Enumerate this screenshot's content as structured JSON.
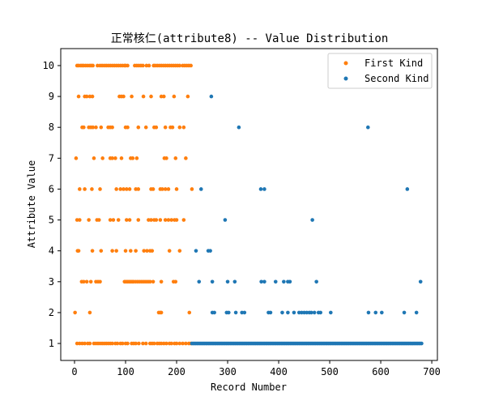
{
  "chart_data": {
    "type": "scatter",
    "title": "正常核仁(attribute8) -- Value Distribution",
    "xlabel": "Record Number",
    "ylabel": "Attribute Value",
    "xlim": [
      -27,
      711
    ],
    "ylim": [
      0.45,
      10.55
    ],
    "xticks": [
      0,
      100,
      200,
      300,
      400,
      500,
      600,
      700
    ],
    "yticks": [
      1,
      2,
      3,
      4,
      5,
      6,
      7,
      8,
      9,
      10
    ],
    "grid": false,
    "legend_position": "top-right",
    "series": [
      {
        "name": "First Kind",
        "color": "#ff7f0e",
        "points": [
          [
            5,
            10
          ],
          [
            8,
            10
          ],
          [
            12,
            10
          ],
          [
            15,
            10
          ],
          [
            18,
            10
          ],
          [
            22,
            10
          ],
          [
            26,
            10
          ],
          [
            30,
            10
          ],
          [
            33,
            10
          ],
          [
            36,
            10
          ],
          [
            45,
            10
          ],
          [
            50,
            10
          ],
          [
            54,
            10
          ],
          [
            58,
            10
          ],
          [
            62,
            10
          ],
          [
            66,
            10
          ],
          [
            70,
            10
          ],
          [
            74,
            10
          ],
          [
            78,
            10
          ],
          [
            82,
            10
          ],
          [
            86,
            10
          ],
          [
            90,
            10
          ],
          [
            94,
            10
          ],
          [
            98,
            10
          ],
          [
            100,
            10
          ],
          [
            104,
            10
          ],
          [
            118,
            10
          ],
          [
            122,
            10
          ],
          [
            126,
            10
          ],
          [
            130,
            10
          ],
          [
            134,
            10
          ],
          [
            141,
            10
          ],
          [
            146,
            10
          ],
          [
            155,
            10
          ],
          [
            158,
            10
          ],
          [
            162,
            10
          ],
          [
            166,
            10
          ],
          [
            170,
            10
          ],
          [
            174,
            10
          ],
          [
            178,
            10
          ],
          [
            182,
            10
          ],
          [
            186,
            10
          ],
          [
            190,
            10
          ],
          [
            194,
            10
          ],
          [
            198,
            10
          ],
          [
            202,
            10
          ],
          [
            206,
            10
          ],
          [
            212,
            10
          ],
          [
            216,
            10
          ],
          [
            220,
            10
          ],
          [
            224,
            10
          ],
          [
            228,
            10
          ],
          [
            8,
            9
          ],
          [
            20,
            9
          ],
          [
            24,
            9
          ],
          [
            30,
            9
          ],
          [
            35,
            9
          ],
          [
            88,
            9
          ],
          [
            92,
            9
          ],
          [
            96,
            9
          ],
          [
            112,
            9
          ],
          [
            135,
            9
          ],
          [
            150,
            9
          ],
          [
            170,
            9
          ],
          [
            175,
            9
          ],
          [
            195,
            9
          ],
          [
            222,
            9
          ],
          [
            15,
            8
          ],
          [
            18,
            8
          ],
          [
            28,
            8
          ],
          [
            32,
            8
          ],
          [
            36,
            8
          ],
          [
            42,
            8
          ],
          [
            52,
            8
          ],
          [
            66,
            8
          ],
          [
            70,
            8
          ],
          [
            74,
            8
          ],
          [
            100,
            8
          ],
          [
            104,
            8
          ],
          [
            125,
            8
          ],
          [
            140,
            8
          ],
          [
            156,
            8
          ],
          [
            160,
            8
          ],
          [
            178,
            8
          ],
          [
            188,
            8
          ],
          [
            192,
            8
          ],
          [
            206,
            8
          ],
          [
            214,
            8
          ],
          [
            3,
            7
          ],
          [
            38,
            7
          ],
          [
            55,
            7
          ],
          [
            70,
            7
          ],
          [
            74,
            7
          ],
          [
            80,
            7
          ],
          [
            92,
            7
          ],
          [
            110,
            7
          ],
          [
            114,
            7
          ],
          [
            122,
            7
          ],
          [
            176,
            7
          ],
          [
            180,
            7
          ],
          [
            198,
            7
          ],
          [
            218,
            7
          ],
          [
            10,
            6
          ],
          [
            20,
            6
          ],
          [
            34,
            6
          ],
          [
            50,
            6
          ],
          [
            82,
            6
          ],
          [
            90,
            6
          ],
          [
            96,
            6
          ],
          [
            102,
            6
          ],
          [
            108,
            6
          ],
          [
            120,
            6
          ],
          [
            125,
            6
          ],
          [
            150,
            6
          ],
          [
            154,
            6
          ],
          [
            168,
            6
          ],
          [
            172,
            6
          ],
          [
            178,
            6
          ],
          [
            184,
            6
          ],
          [
            200,
            6
          ],
          [
            230,
            6
          ],
          [
            5,
            5
          ],
          [
            10,
            5
          ],
          [
            28,
            5
          ],
          [
            44,
            5
          ],
          [
            48,
            5
          ],
          [
            70,
            5
          ],
          [
            76,
            5
          ],
          [
            86,
            5
          ],
          [
            102,
            5
          ],
          [
            108,
            5
          ],
          [
            125,
            5
          ],
          [
            145,
            5
          ],
          [
            150,
            5
          ],
          [
            156,
            5
          ],
          [
            160,
            5
          ],
          [
            168,
            5
          ],
          [
            178,
            5
          ],
          [
            184,
            5
          ],
          [
            190,
            5
          ],
          [
            196,
            5
          ],
          [
            200,
            5
          ],
          [
            214,
            5
          ],
          [
            6,
            4
          ],
          [
            8,
            4
          ],
          [
            35,
            4
          ],
          [
            52,
            4
          ],
          [
            74,
            4
          ],
          [
            82,
            4
          ],
          [
            100,
            4
          ],
          [
            110,
            4
          ],
          [
            120,
            4
          ],
          [
            136,
            4
          ],
          [
            142,
            4
          ],
          [
            148,
            4
          ],
          [
            152,
            4
          ],
          [
            186,
            4
          ],
          [
            206,
            4
          ],
          [
            14,
            3
          ],
          [
            18,
            3
          ],
          [
            24,
            3
          ],
          [
            32,
            3
          ],
          [
            42,
            3
          ],
          [
            46,
            3
          ],
          [
            50,
            3
          ],
          [
            98,
            3
          ],
          [
            101,
            3
          ],
          [
            104,
            3
          ],
          [
            107,
            3
          ],
          [
            110,
            3
          ],
          [
            113,
            3
          ],
          [
            116,
            3
          ],
          [
            120,
            3
          ],
          [
            124,
            3
          ],
          [
            128,
            3
          ],
          [
            132,
            3
          ],
          [
            136,
            3
          ],
          [
            140,
            3
          ],
          [
            144,
            3
          ],
          [
            148,
            3
          ],
          [
            154,
            3
          ],
          [
            170,
            3
          ],
          [
            194,
            3
          ],
          [
            198,
            3
          ],
          [
            1,
            2
          ],
          [
            30,
            2
          ],
          [
            165,
            2
          ],
          [
            168,
            2
          ],
          [
            170,
            2
          ],
          [
            225,
            2
          ],
          [
            5,
            1
          ],
          [
            10,
            1
          ],
          [
            15,
            1
          ],
          [
            20,
            1
          ],
          [
            26,
            1
          ],
          [
            30,
            1
          ],
          [
            38,
            1
          ],
          [
            42,
            1
          ],
          [
            46,
            1
          ],
          [
            50,
            1
          ],
          [
            54,
            1
          ],
          [
            58,
            1
          ],
          [
            62,
            1
          ],
          [
            66,
            1
          ],
          [
            70,
            1
          ],
          [
            74,
            1
          ],
          [
            80,
            1
          ],
          [
            84,
            1
          ],
          [
            90,
            1
          ],
          [
            94,
            1
          ],
          [
            100,
            1
          ],
          [
            104,
            1
          ],
          [
            112,
            1
          ],
          [
            116,
            1
          ],
          [
            120,
            1
          ],
          [
            126,
            1
          ],
          [
            134,
            1
          ],
          [
            140,
            1
          ],
          [
            148,
            1
          ],
          [
            152,
            1
          ],
          [
            156,
            1
          ],
          [
            162,
            1
          ],
          [
            166,
            1
          ],
          [
            170,
            1
          ],
          [
            175,
            1
          ],
          [
            180,
            1
          ],
          [
            186,
            1
          ],
          [
            190,
            1
          ],
          [
            196,
            1
          ],
          [
            200,
            1
          ],
          [
            206,
            1
          ],
          [
            212,
            1
          ],
          [
            218,
            1
          ],
          [
            224,
            1
          ],
          [
            228,
            1
          ]
        ]
      },
      {
        "name": "Second Kind",
        "color": "#1f77b4",
        "x_range_dense": [
          230,
          682,
          1,
          2.5
        ],
        "points": [
          [
            268,
            9
          ],
          [
            322,
            8
          ],
          [
            575,
            8
          ],
          [
            248,
            6
          ],
          [
            365,
            6
          ],
          [
            372,
            6
          ],
          [
            652,
            6
          ],
          [
            295,
            5
          ],
          [
            466,
            5
          ],
          [
            238,
            4
          ],
          [
            262,
            4
          ],
          [
            266,
            4
          ],
          [
            244,
            3
          ],
          [
            270,
            3
          ],
          [
            300,
            3
          ],
          [
            314,
            3
          ],
          [
            366,
            3
          ],
          [
            372,
            3
          ],
          [
            394,
            3
          ],
          [
            410,
            3
          ],
          [
            418,
            3
          ],
          [
            422,
            3
          ],
          [
            474,
            3
          ],
          [
            678,
            3
          ],
          [
            270,
            2
          ],
          [
            274,
            2
          ],
          [
            298,
            2
          ],
          [
            302,
            2
          ],
          [
            316,
            2
          ],
          [
            328,
            2
          ],
          [
            333,
            2
          ],
          [
            380,
            2
          ],
          [
            384,
            2
          ],
          [
            407,
            2
          ],
          [
            418,
            2
          ],
          [
            430,
            2
          ],
          [
            440,
            2
          ],
          [
            445,
            2
          ],
          [
            450,
            2
          ],
          [
            455,
            2
          ],
          [
            460,
            2
          ],
          [
            464,
            2
          ],
          [
            470,
            2
          ],
          [
            478,
            2
          ],
          [
            482,
            2
          ],
          [
            502,
            2
          ],
          [
            576,
            2
          ],
          [
            590,
            2
          ],
          [
            602,
            2
          ],
          [
            646,
            2
          ],
          [
            670,
            2
          ]
        ]
      }
    ]
  }
}
